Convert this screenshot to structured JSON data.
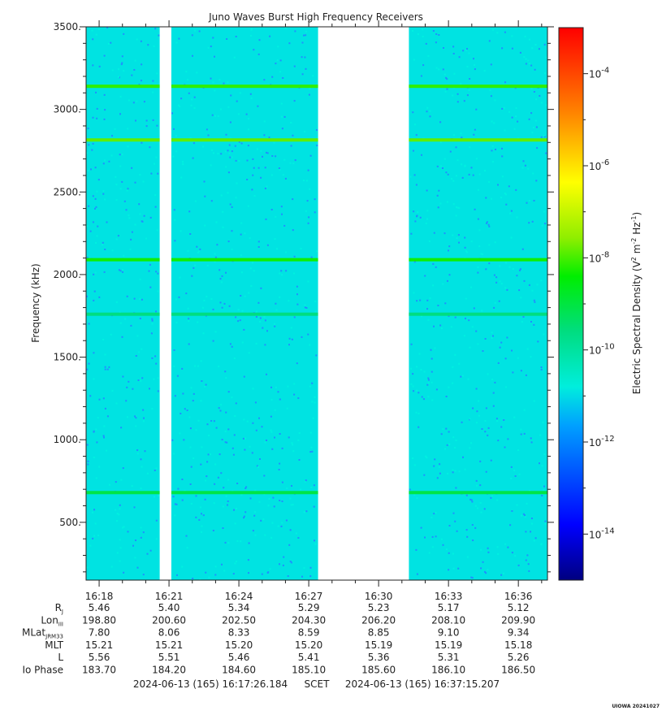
{
  "chart_data": {
    "type": "heatmap",
    "title": "Juno Waves Burst High Frequency Receivers",
    "ylabel": "Frequency (kHz)",
    "ylim": [
      150,
      3500
    ],
    "y_ticks": [
      "3500.",
      "3000.",
      "2500.",
      "2000.",
      "1500.",
      "1000.",
      "500."
    ],
    "y_tick_values": [
      3500,
      3000,
      2500,
      2000,
      1500,
      1000,
      500
    ],
    "x_ticks": [
      "16:18",
      "16:21",
      "16:24",
      "16:27",
      "16:30",
      "16:33",
      "16:36"
    ],
    "x_tick_minutes": [
      18,
      21,
      24,
      27,
      30,
      33,
      36
    ],
    "x_range_minutes": [
      17.44,
      37.25
    ],
    "data_segments_minutes": [
      [
        17.44,
        20.6
      ],
      [
        21.1,
        27.4
      ],
      [
        31.3,
        37.25
      ]
    ],
    "background_level_exp": -11.9,
    "emission_lines": [
      {
        "freq_khz": 3140,
        "level_exp": -9.2
      },
      {
        "freq_khz": 2815,
        "level_exp": -8.9
      },
      {
        "freq_khz": 2090,
        "level_exp": -9.4
      },
      {
        "freq_khz": 1760,
        "level_exp": -10.8
      },
      {
        "freq_khz": 680,
        "level_exp": -10.2
      }
    ],
    "colorbar": {
      "label_base": "Electric Spectral Density (V",
      "label_unit_mid": " m",
      "label_unit_end": " Hz",
      "label_close": ")",
      "sup_a": "2",
      "sup_b": "-2",
      "sup_c": "-1",
      "range_exp": [
        -15,
        -3
      ],
      "tick_base": "10",
      "tick_exps": [
        "-4",
        "-6",
        "-8",
        "-10",
        "-12",
        "-14"
      ],
      "tick_values": [
        -4,
        -6,
        -8,
        -10,
        -12,
        -14
      ]
    },
    "ephemeris": {
      "rows": [
        {
          "label": "R",
          "sub": "J",
          "values": [
            "5.46",
            "5.40",
            "5.34",
            "5.29",
            "5.23",
            "5.17",
            "5.12"
          ]
        },
        {
          "label": "Lon",
          "sub": "III",
          "values": [
            "198.80",
            "200.60",
            "202.50",
            "204.30",
            "206.20",
            "208.10",
            "209.90"
          ]
        },
        {
          "label": "MLat",
          "sub": "JRM33",
          "values": [
            "7.80",
            "8.06",
            "8.33",
            "8.59",
            "8.85",
            "9.10",
            "9.34"
          ]
        },
        {
          "label": "MLT",
          "sub": "",
          "values": [
            "15.21",
            "15.21",
            "15.20",
            "15.20",
            "15.19",
            "15.19",
            "15.18"
          ]
        },
        {
          "label": "L",
          "sub": "",
          "values": [
            "5.56",
            "5.51",
            "5.46",
            "5.41",
            "5.36",
            "5.31",
            "5.26"
          ]
        },
        {
          "label": "Io Phase",
          "sub": "",
          "values": [
            "183.70",
            "184.20",
            "184.60",
            "185.10",
            "185.60",
            "186.10",
            "186.50"
          ]
        }
      ]
    },
    "time_range": {
      "start": "2024-06-13 (165) 16:17:26.184",
      "frame": "SCET",
      "end": "2024-06-13 (165) 16:37:15.207"
    },
    "credit": "UIOWA 20241027"
  }
}
